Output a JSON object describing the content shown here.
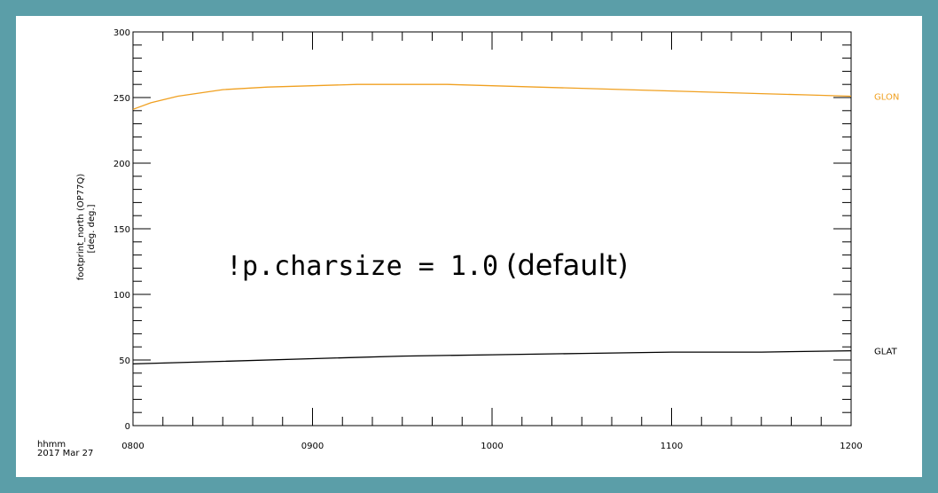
{
  "chart_data": {
    "type": "line",
    "xlabel_lines": [
      "hhmm",
      "2017 Mar 27"
    ],
    "ylabel_lines": [
      "footprint_north (OP77Q)",
      "[deg. deg.]"
    ],
    "annotation_code": "!p.charsize = 1.0",
    "annotation_note": "(default)",
    "x_ticks": [
      "0800",
      "0900",
      "1000",
      "1100",
      "1200"
    ],
    "x_tick_values": [
      8,
      9,
      10,
      11,
      12
    ],
    "xlim": [
      8,
      12
    ],
    "ylim": [
      0,
      300
    ],
    "y_ticks": [
      0,
      50,
      100,
      150,
      200,
      250,
      300
    ],
    "grid": false,
    "series": [
      {
        "name": "GLON",
        "color": "#f0a020",
        "x": [
          8.0,
          8.1,
          8.25,
          8.5,
          8.75,
          9.0,
          9.25,
          9.5,
          9.75,
          10.0,
          10.25,
          10.5,
          10.75,
          11.0,
          11.25,
          11.5,
          11.75,
          12.0
        ],
        "y": [
          241,
          246,
          251,
          256,
          258,
          259,
          260,
          260,
          260,
          259,
          258,
          257,
          256,
          255,
          254,
          253,
          252,
          251
        ]
      },
      {
        "name": "GLAT",
        "color": "#000000",
        "x": [
          8.0,
          8.5,
          9.0,
          9.5,
          10.0,
          10.5,
          11.0,
          11.5,
          12.0
        ],
        "y": [
          47,
          49,
          51,
          53,
          54,
          55,
          56,
          56,
          57
        ]
      }
    ]
  }
}
